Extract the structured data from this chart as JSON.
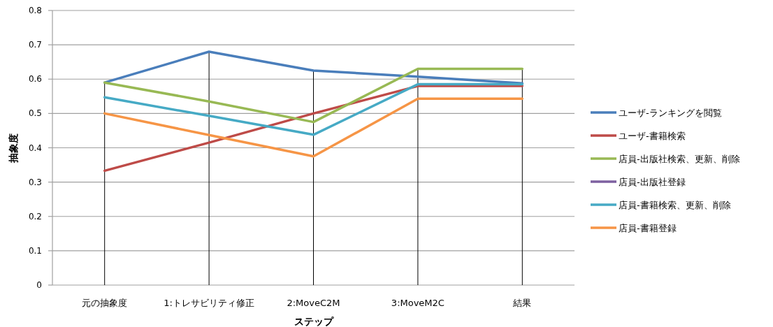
{
  "chart_data": {
    "type": "line",
    "xlabel": "ステップ",
    "ylabel": "抽象度",
    "categories": [
      "元の抽象度",
      "1:トレサビリティ修正",
      "2:MoveC2M",
      "3:MoveM2C",
      "結果"
    ],
    "ylim": [
      0,
      0.8
    ],
    "yticks": [
      0,
      0.1,
      0.2,
      0.3,
      0.4,
      0.5,
      0.6,
      0.7,
      0.8
    ],
    "grid": true,
    "legend": "right",
    "marker": "none",
    "line_style": "solid",
    "series": [
      {
        "name": "ユーザ-ランキングを閲覧",
        "color": "#4a7ebb",
        "values": [
          0.59,
          0.68,
          0.625,
          0.607,
          0.588
        ]
      },
      {
        "name": "ユーザ-書籍検索",
        "color": "#be4b48",
        "values": [
          0.333,
          0.415,
          0.5,
          0.58,
          0.58
        ]
      },
      {
        "name": "店員-出版社検索、更新、削除",
        "color": "#98b954",
        "values": [
          0.59,
          0.535,
          0.475,
          0.63,
          0.63
        ]
      },
      {
        "name": "店員-出版社登録",
        "color": "#7d60a0",
        "values": [
          null,
          null,
          null,
          null,
          null
        ]
      },
      {
        "name": "店員-書籍検索、更新、削除",
        "color": "#46aac5",
        "values": [
          0.547,
          0.493,
          0.438,
          0.585,
          0.585
        ]
      },
      {
        "name": "店員-書籍登録",
        "color": "#f69546",
        "values": [
          0.5,
          0.437,
          0.375,
          0.543,
          0.543
        ]
      }
    ]
  }
}
